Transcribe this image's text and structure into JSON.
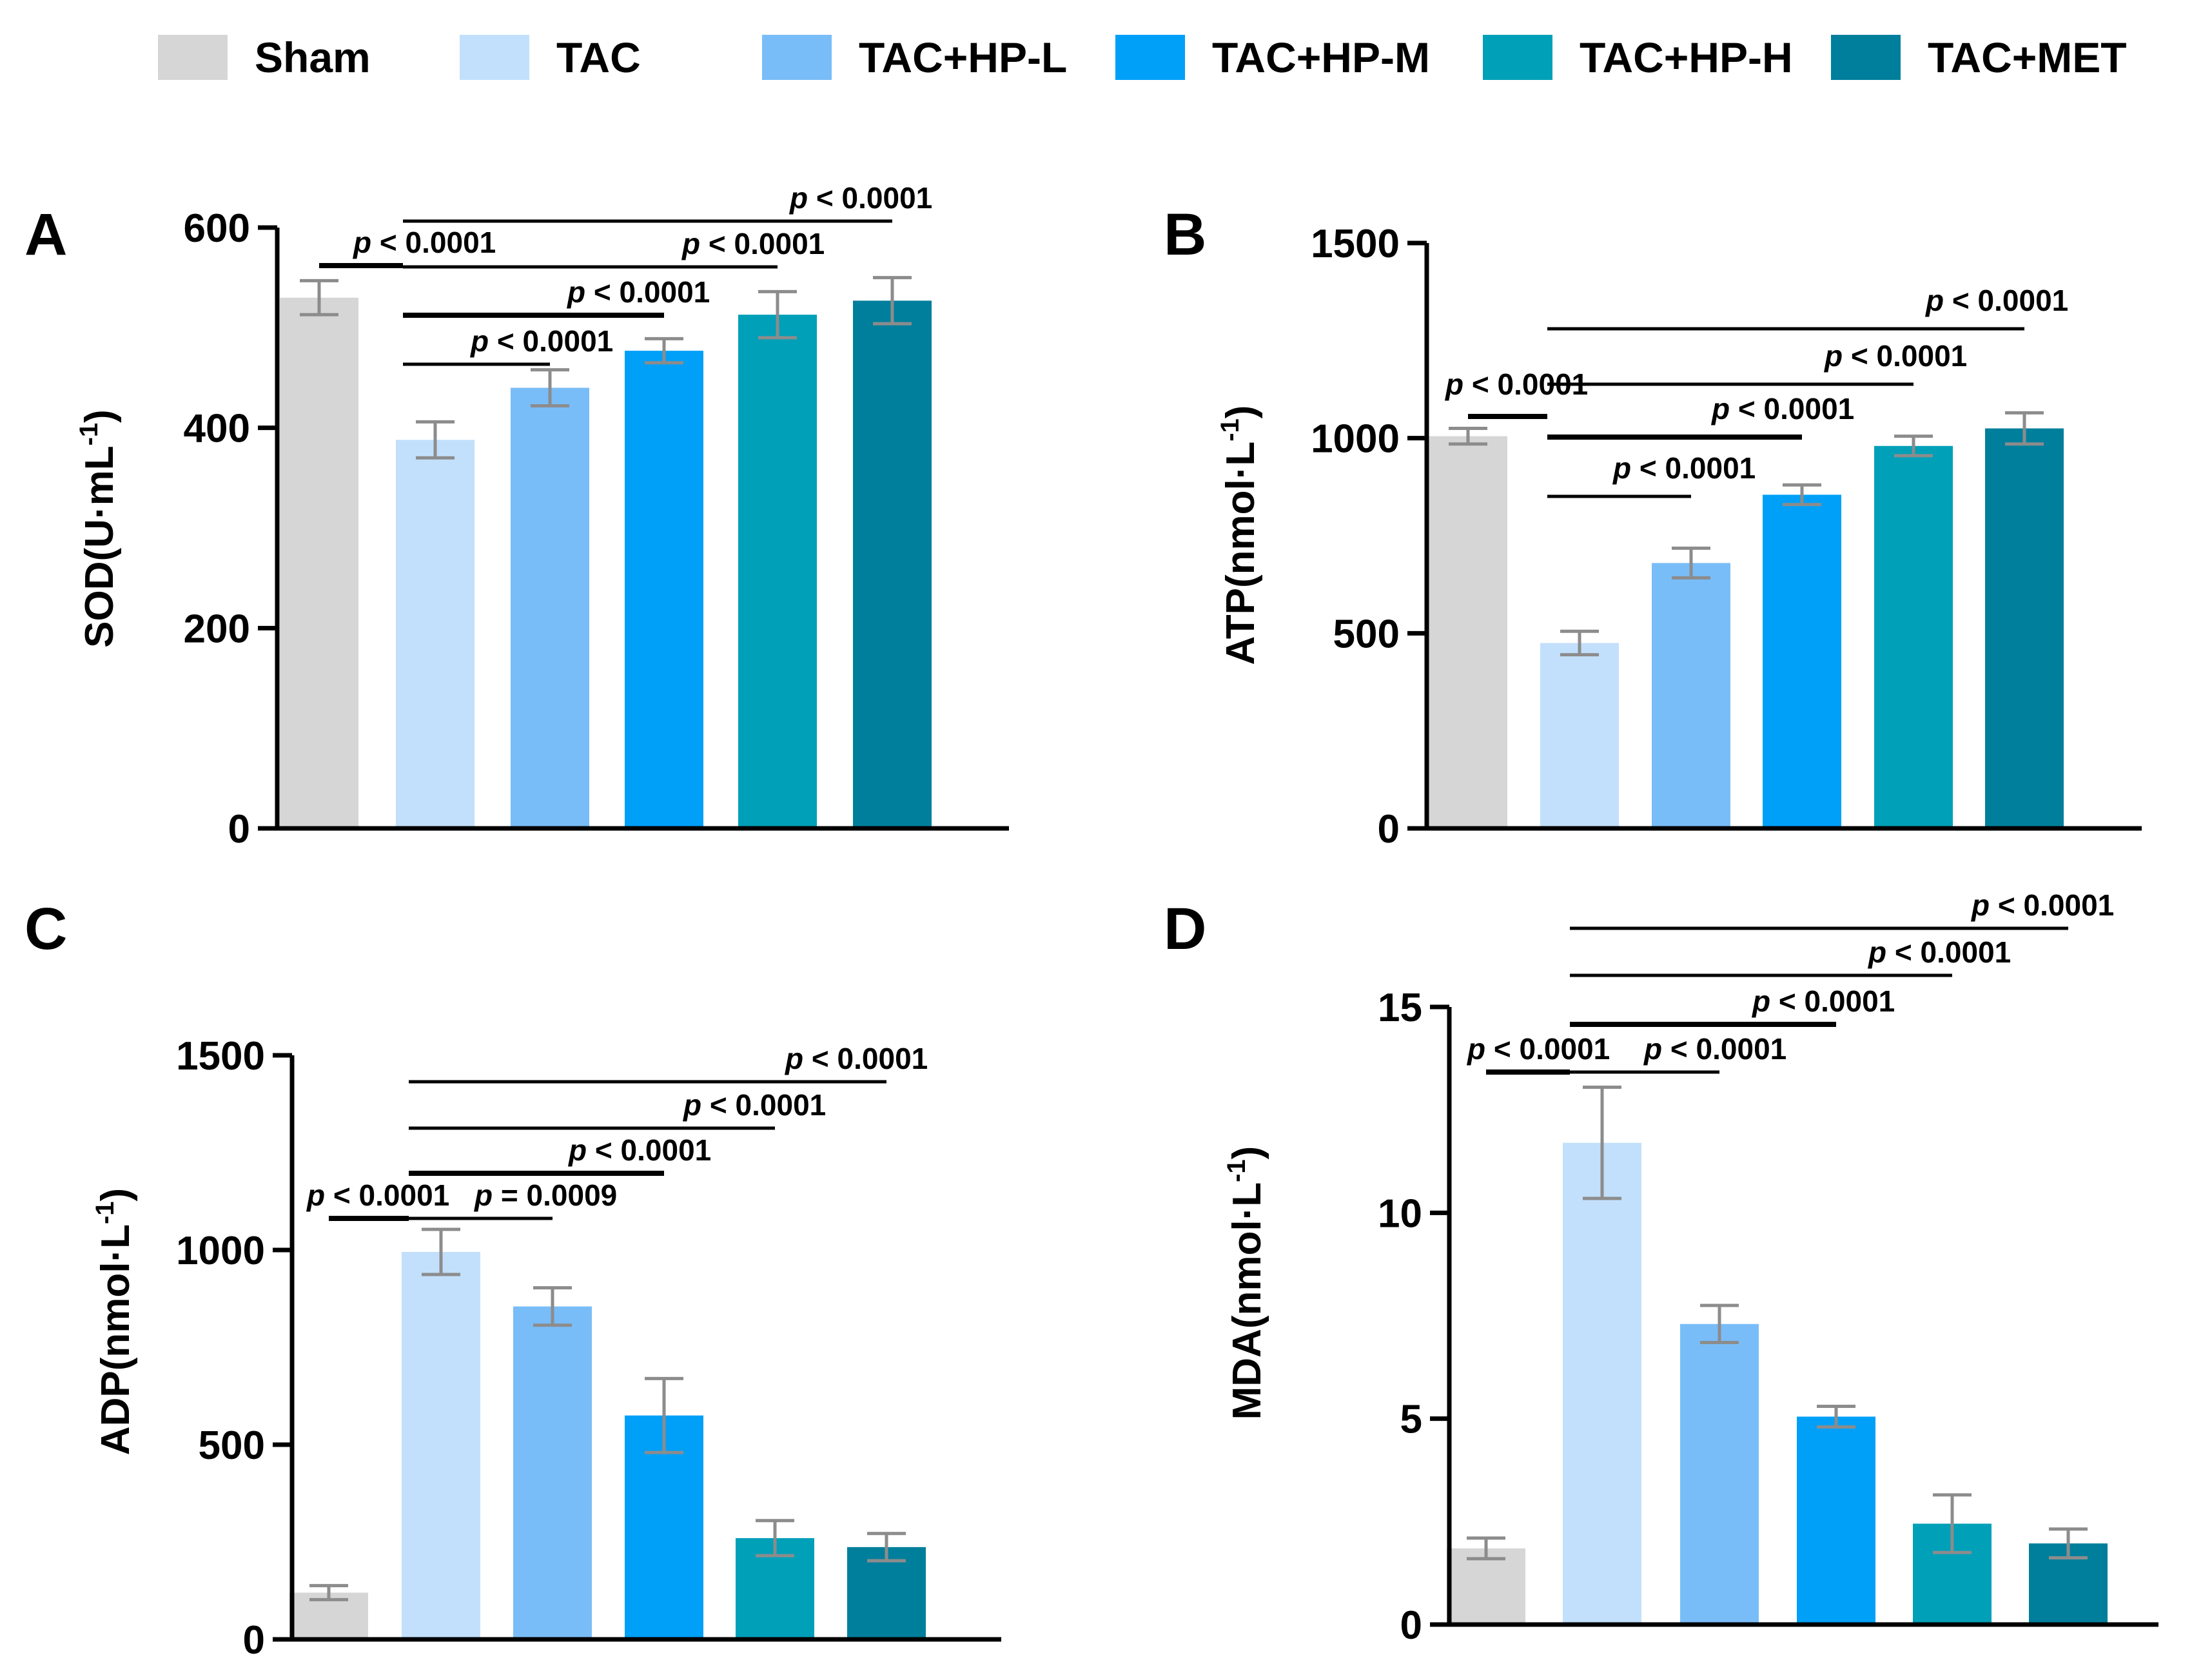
{
  "colors": [
    "#d6d6d6",
    "#c2e0fb",
    "#79bdf8",
    "#00a0f8",
    "#00a0b8",
    "#007f9c"
  ],
  "axis_color": "#000000",
  "error_color": "#8c8c8c",
  "legend": [
    "Sham",
    "TAC",
    "TAC+HP-L",
    "TAC+HP-M",
    "TAC+HP-H",
    "TAC+MET"
  ],
  "chart_data": [
    {
      "panel": "A",
      "type": "bar",
      "categories": [
        "Sham",
        "TAC",
        "TAC+HP-L",
        "TAC+HP-M",
        "TAC+HP-H",
        "TAC+MET"
      ],
      "values": [
        530,
        388,
        440,
        477,
        513,
        527
      ],
      "errors": [
        17,
        18,
        18,
        12,
        23,
        23
      ],
      "ylabel_main": "SOD(U·mL",
      "ylabel_sup": "-1",
      "ylabel_close": ")",
      "ylim": [
        0,
        600
      ],
      "yticks": [
        0,
        200,
        400,
        600
      ],
      "ytick_labels": [
        "0",
        "200",
        "400",
        "600"
      ],
      "brackets": [
        {
          "from": 0,
          "to": 1,
          "p": "p",
          "text": " < 0.0001"
        },
        {
          "from": 1,
          "to": 2,
          "p": "p",
          "text": " < 0.0001"
        },
        {
          "from": 1,
          "to": 3,
          "p": "p",
          "text": " < 0.0001"
        },
        {
          "from": 1,
          "to": 4,
          "p": "p",
          "text": " < 0.0001"
        },
        {
          "from": 1,
          "to": 5,
          "p": "p",
          "text": " < 0.0001"
        }
      ]
    },
    {
      "panel": "B",
      "type": "bar",
      "categories": [
        "Sham",
        "TAC",
        "TAC+HP-L",
        "TAC+HP-M",
        "TAC+HP-H",
        "TAC+MET"
      ],
      "values": [
        1005,
        475,
        680,
        855,
        980,
        1025
      ],
      "errors": [
        20,
        30,
        38,
        25,
        25,
        40
      ],
      "ylabel_main": "ATP(nmol·L",
      "ylabel_sup": "-1",
      "ylabel_close": ")",
      "ylim": [
        0,
        1500
      ],
      "yticks": [
        0,
        500,
        1000,
        1500
      ],
      "ytick_labels": [
        "0",
        "500",
        "1000",
        "1500"
      ],
      "brackets": [
        {
          "from": 0,
          "to": 1,
          "p": "p",
          "text": " < 0.0001"
        },
        {
          "from": 1,
          "to": 2,
          "p": "p",
          "text": " < 0.0001"
        },
        {
          "from": 1,
          "to": 3,
          "p": "p",
          "text": " < 0.0001"
        },
        {
          "from": 1,
          "to": 4,
          "p": "p",
          "text": " < 0.0001"
        },
        {
          "from": 1,
          "to": 5,
          "p": "p",
          "text": " < 0.0001"
        }
      ]
    },
    {
      "panel": "C",
      "type": "bar",
      "categories": [
        "Sham",
        "TAC",
        "TAC+HP-L",
        "TAC+HP-M",
        "TAC+HP-H",
        "TAC+MET"
      ],
      "values": [
        120,
        995,
        855,
        575,
        260,
        237
      ],
      "errors": [
        18,
        58,
        48,
        95,
        45,
        35
      ],
      "ylabel_main": "ADP(nmol·L",
      "ylabel_sup": "-1",
      "ylabel_close": ")",
      "ylim": [
        0,
        1500
      ],
      "yticks": [
        0,
        500,
        1000,
        1500
      ],
      "ytick_labels": [
        "0",
        "500",
        "1000",
        "1500"
      ],
      "brackets": [
        {
          "from": 0,
          "to": 1,
          "p": "p",
          "text": " < 0.0001"
        },
        {
          "from": 1,
          "to": 2,
          "p": "p",
          "text": " = 0.0009"
        },
        {
          "from": 1,
          "to": 3,
          "p": "p",
          "text": " < 0.0001"
        },
        {
          "from": 1,
          "to": 4,
          "p": "p",
          "text": " < 0.0001"
        },
        {
          "from": 1,
          "to": 5,
          "p": "p",
          "text": " < 0.0001"
        }
      ]
    },
    {
      "panel": "D",
      "type": "bar",
      "categories": [
        "Sham",
        "TAC",
        "TAC+HP-L",
        "TAC+HP-M",
        "TAC+HP-H",
        "TAC+MET"
      ],
      "values": [
        1.85,
        11.7,
        7.3,
        5.05,
        2.45,
        1.97
      ],
      "errors": [
        0.25,
        1.35,
        0.45,
        0.25,
        0.7,
        0.35
      ],
      "ylabel_main": "MDA(nmol·L",
      "ylabel_sup": "-1",
      "ylabel_close": ")",
      "ylim": [
        0,
        15
      ],
      "yticks": [
        0,
        5,
        10,
        15
      ],
      "ytick_labels": [
        "0",
        "5",
        "10",
        "15"
      ],
      "brackets": [
        {
          "from": 0,
          "to": 1,
          "p": "p",
          "text": " < 0.0001"
        },
        {
          "from": 1,
          "to": 2,
          "p": "p",
          "text": " < 0.0001"
        },
        {
          "from": 1,
          "to": 3,
          "p": "p",
          "text": " < 0.0001"
        },
        {
          "from": 1,
          "to": 4,
          "p": "p",
          "text": " < 0.0001"
        },
        {
          "from": 1,
          "to": 5,
          "p": "p",
          "text": " < 0.0001"
        }
      ]
    }
  ]
}
